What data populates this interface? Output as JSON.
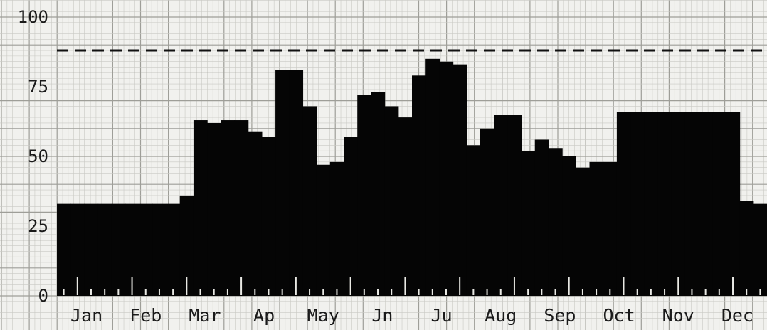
{
  "chart_data": {
    "type": "bar",
    "title": "",
    "xlabel": "",
    "ylabel": "",
    "ylim": [
      0,
      100
    ],
    "yticks": [
      0,
      25,
      50,
      75,
      100
    ],
    "grid": true,
    "reference_line": {
      "value": 88,
      "style": "dashed"
    },
    "colors": {
      "bars": "#050505",
      "paper": "#f1f1ee",
      "grid_minor": "#c9c9c4",
      "grid_major": "#9e9e98",
      "ticks": "#e9e9e4"
    },
    "month_labels": [
      "Jan",
      "Feb",
      "Mar",
      "Ap",
      "May",
      "Jn",
      "Ju",
      "Aug",
      "Sep",
      "Oct",
      "Nov",
      "Dec"
    ],
    "weeks": 52,
    "values": [
      33,
      33,
      33,
      33,
      33,
      33,
      33,
      33,
      33,
      36,
      63,
      62,
      63,
      63,
      59,
      57,
      81,
      81,
      68,
      47,
      48,
      57,
      72,
      73,
      68,
      64,
      79,
      85,
      84,
      83,
      54,
      60,
      65,
      65,
      52,
      56,
      53,
      50,
      46,
      48,
      48,
      66,
      66,
      66,
      66,
      66,
      66,
      66,
      66,
      66,
      34,
      33
    ]
  }
}
